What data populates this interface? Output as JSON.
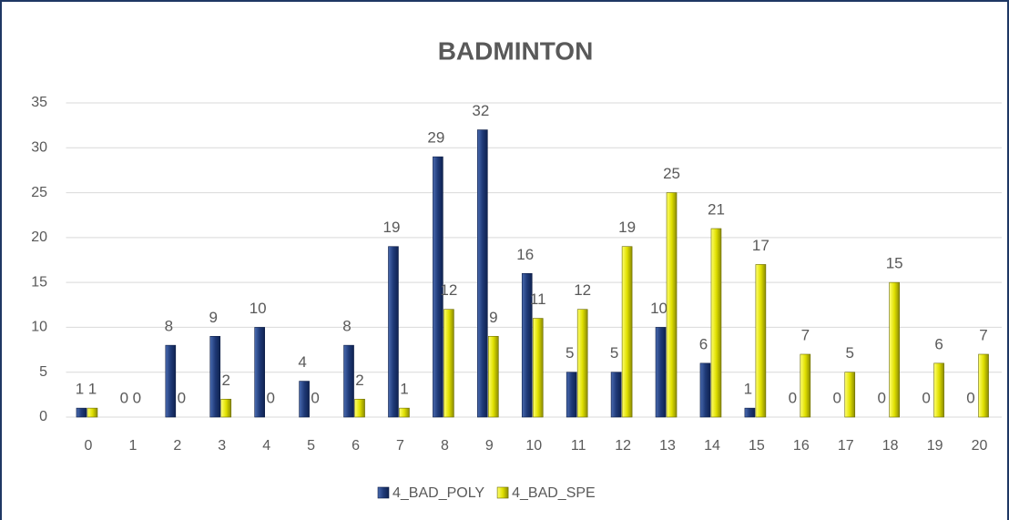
{
  "chart_data": {
    "type": "bar",
    "title": "BADMINTON",
    "categories": [
      "0",
      "1",
      "2",
      "3",
      "4",
      "5",
      "6",
      "7",
      "8",
      "9",
      "10",
      "11",
      "12",
      "13",
      "14",
      "15",
      "16",
      "17",
      "18",
      "19",
      "20"
    ],
    "series": [
      {
        "name": "4_BAD_POLY",
        "color": "#2a4a8a",
        "values": [
          1,
          0,
          8,
          9,
          10,
          4,
          8,
          19,
          29,
          32,
          16,
          5,
          5,
          10,
          6,
          1,
          0,
          0,
          0,
          0,
          0
        ]
      },
      {
        "name": "4_BAD_SPE",
        "color": "#e0e000",
        "values": [
          1,
          0,
          0,
          2,
          0,
          0,
          2,
          1,
          12,
          9,
          11,
          12,
          19,
          25,
          21,
          17,
          7,
          5,
          15,
          6,
          7
        ]
      }
    ],
    "ylim": [
      0,
      35
    ],
    "yticks": [
      0,
      5,
      10,
      15,
      20,
      25,
      30,
      35
    ],
    "grid": true,
    "legend": "bottom"
  }
}
